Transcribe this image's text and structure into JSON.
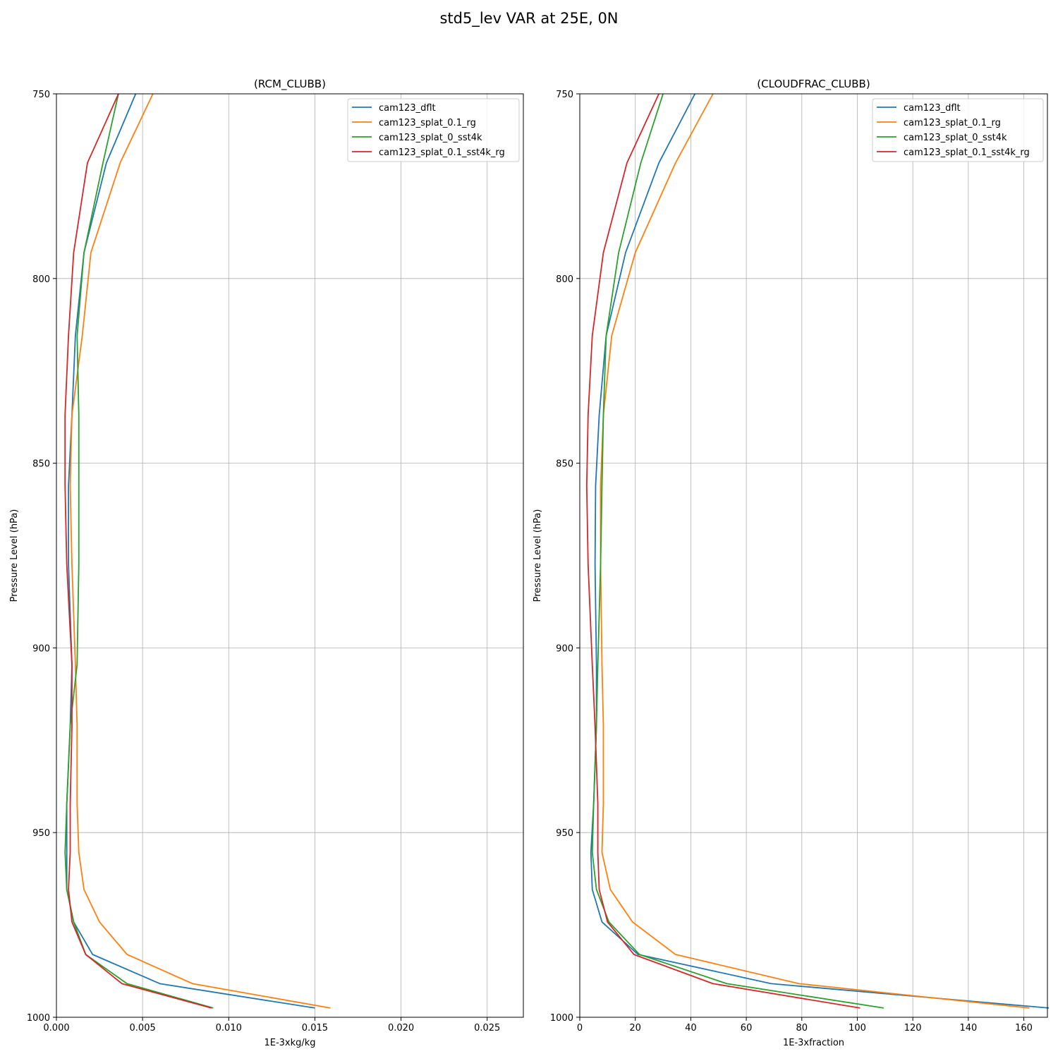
{
  "figure": {
    "suptitle": "std5_lev VAR at 25E, 0N"
  },
  "series_styles": [
    {
      "name": "cam123_dflt",
      "color": "#1f77b4"
    },
    {
      "name": "cam123_splat_0.1_rg",
      "color": "#ff7f0e"
    },
    {
      "name": "cam123_splat_0_sst4k",
      "color": "#2ca02c"
    },
    {
      "name": "cam123_splat_0.1_sst4k_rg",
      "color": "#d62728"
    }
  ],
  "chart_data": [
    {
      "type": "line",
      "title": "(RCM_CLUBB)",
      "xlabel": "1E-3xkg/kg",
      "ylabel": "Pressure Level (hPa)",
      "xlim": [
        0,
        0.0271
      ],
      "ylim": [
        1000,
        750
      ],
      "y_inverted": true,
      "xticks": [
        0.0,
        0.005,
        0.01,
        0.015,
        0.02,
        0.025
      ],
      "xtick_labels": [
        "0.000",
        "0.005",
        "0.010",
        "0.015",
        "0.020",
        "0.025"
      ],
      "yticks": [
        750,
        800,
        850,
        900,
        950,
        1000
      ],
      "ytick_labels": [
        "750",
        "800",
        "850",
        "900",
        "950",
        "1000"
      ],
      "grid": true,
      "legend_position": "top-right",
      "levels": [
        750,
        768.7,
        793,
        815.5,
        837,
        856.1,
        877.4,
        904.5,
        921.1,
        942.2,
        955.4,
        965.4,
        974.2,
        983,
        990.9,
        997.5
      ],
      "series": [
        {
          "name": "cam123_dflt",
          "values": [
            0.0046,
            0.0029,
            0.0016,
            0.0011,
            0.0009,
            0.0007,
            0.0007,
            0.0009,
            0.0008,
            0.0006,
            0.0006,
            0.0006,
            0.001,
            0.0021,
            0.006,
            0.015
          ]
        },
        {
          "name": "cam123_splat_0.1_rg",
          "values": [
            0.0056,
            0.0037,
            0.002,
            0.0015,
            0.0009,
            0.0008,
            0.0009,
            0.0011,
            0.0012,
            0.0012,
            0.0013,
            0.0016,
            0.0025,
            0.0041,
            0.0079,
            0.0159
          ]
        },
        {
          "name": "cam123_splat_0_sst4k",
          "values": [
            0.0036,
            0.0027,
            0.0016,
            0.0012,
            0.0013,
            0.0013,
            0.0013,
            0.0012,
            0.0008,
            0.0006,
            0.0005,
            0.0006,
            0.001,
            0.0017,
            0.0041,
            0.0091
          ]
        },
        {
          "name": "cam123_splat_0.1_sst4k_rg",
          "values": [
            0.0036,
            0.0018,
            0.001,
            0.0007,
            0.0005,
            0.0005,
            0.0006,
            0.0009,
            0.0009,
            0.0008,
            0.0008,
            0.0007,
            0.0009,
            0.0017,
            0.0038,
            0.009
          ]
        }
      ]
    },
    {
      "type": "line",
      "title": "(CLOUDFRAC_CLUBB)",
      "xlabel": "1E-3xfraction",
      "ylabel": "Pressure Level (hPa)",
      "xlim": [
        0,
        168.5
      ],
      "ylim": [
        1000,
        750
      ],
      "y_inverted": true,
      "xticks": [
        0,
        20,
        40,
        60,
        80,
        100,
        120,
        140,
        160
      ],
      "xtick_labels": [
        "0",
        "20",
        "40",
        "60",
        "80",
        "100",
        "120",
        "140",
        "160"
      ],
      "yticks": [
        750,
        800,
        850,
        900,
        950,
        1000
      ],
      "ytick_labels": [
        "750",
        "800",
        "850",
        "900",
        "950",
        "1000"
      ],
      "grid": true,
      "legend_position": "top-right",
      "levels": [
        750,
        768.7,
        793,
        815.5,
        837,
        856.1,
        877.4,
        904.5,
        921.1,
        942.2,
        955.4,
        965.4,
        974.2,
        983,
        990.9,
        997.5
      ],
      "series": [
        {
          "name": "cam123_dflt",
          "values": [
            41.5,
            28.5,
            16.5,
            9.5,
            7,
            5.7,
            5.5,
            6,
            6,
            5,
            4,
            4.5,
            8,
            21,
            69,
            169
          ]
        },
        {
          "name": "cam123_splat_0.1_rg",
          "values": [
            48,
            34.5,
            20,
            11.5,
            8.5,
            7.5,
            7.5,
            8,
            8.5,
            8.5,
            8,
            11,
            19,
            34.5,
            79,
            162
          ]
        },
        {
          "name": "cam123_splat_0_sst4k",
          "values": [
            30,
            22,
            14,
            9.5,
            8.5,
            8,
            7.5,
            6.5,
            6,
            5,
            4.5,
            6,
            10.5,
            21.5,
            53,
            109.5
          ]
        },
        {
          "name": "cam123_splat_0.1_sst4k_rg",
          "values": [
            28.5,
            17,
            8.5,
            4.5,
            3,
            2.5,
            3,
            4.5,
            5.5,
            6.5,
            6.5,
            7,
            10,
            19.5,
            48,
            101
          ]
        }
      ]
    }
  ]
}
